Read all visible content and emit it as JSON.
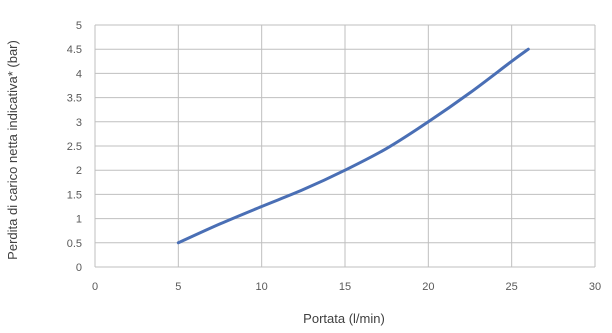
{
  "chart_data": {
    "type": "line",
    "title": "",
    "xlabel": "Portata (l/min)",
    "ylabel": "Perdita di carico netta indicativa* (bar)",
    "xlim": [
      0,
      30
    ],
    "ylim": [
      0,
      5
    ],
    "x_ticks": [
      0,
      5,
      10,
      15,
      20,
      25,
      30
    ],
    "x_tick_labels": [
      "0",
      "5",
      "10",
      "15",
      "20",
      "25",
      "30"
    ],
    "y_ticks": [
      0,
      0.5,
      1,
      1.5,
      2,
      2.5,
      3,
      3.5,
      4,
      4.5,
      5
    ],
    "y_tick_labels": [
      "0",
      "0.5",
      "1",
      "1.5",
      "2",
      "2.5",
      "3",
      "3.5",
      "4",
      "4.5",
      "5"
    ],
    "grid": true,
    "legend": "none",
    "series": [
      {
        "color": "#4a6fb5",
        "x": [
          5,
          7.5,
          10,
          12.5,
          15,
          17.5,
          20,
          22.5,
          25,
          26
        ],
        "y": [
          0.5,
          0.89,
          1.25,
          1.6,
          2.0,
          2.45,
          3.0,
          3.6,
          4.25,
          4.5
        ]
      }
    ]
  }
}
